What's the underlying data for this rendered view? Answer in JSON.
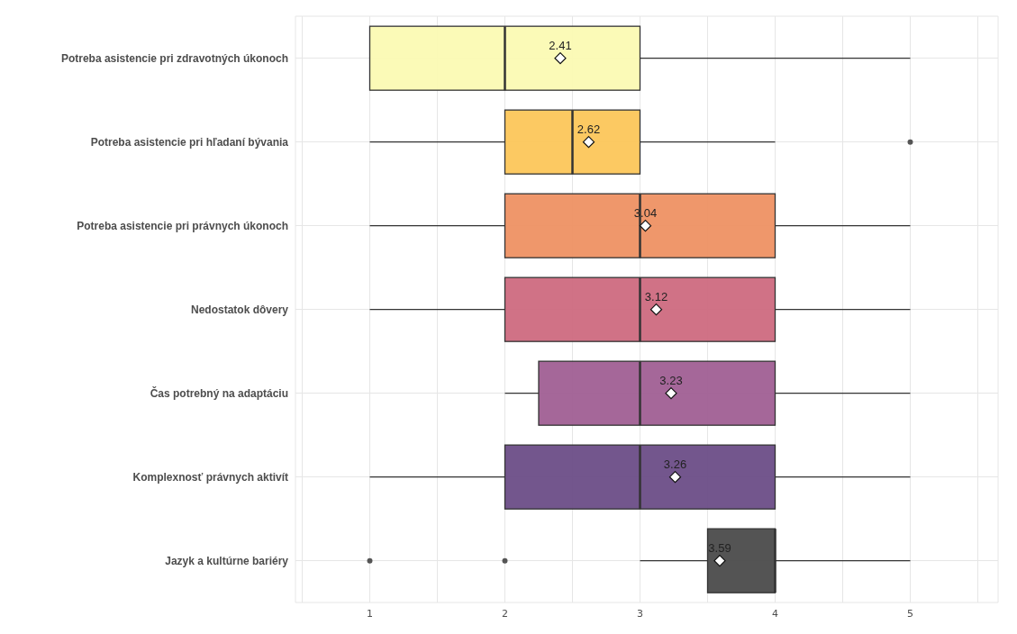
{
  "chart_data": {
    "type": "box",
    "orientation": "horizontal",
    "categories": [
      "Potreba asistencie pri zdravotných úkonoch",
      "Potreba asistencie pri hľadaní bývania",
      "Potreba asistencie pri právnych úkonoch",
      "Nedostatok dôvery",
      "Čas potrebný na adaptáciu",
      "Komplexnosť právnych aktivít",
      "Jazyk a kultúrne bariéry"
    ],
    "boxes": [
      {
        "low": 1,
        "q1": 1,
        "median": 2,
        "q3": 3,
        "high": 5,
        "mean": 2.41
      },
      {
        "low": 1,
        "q1": 2,
        "median": 2.5,
        "q3": 3,
        "high": 4,
        "mean": 2.62,
        "outliers": [
          5
        ]
      },
      {
        "low": 1,
        "q1": 2,
        "median": 3,
        "q3": 4,
        "high": 5,
        "mean": 3.04
      },
      {
        "low": 1,
        "q1": 2,
        "median": 3,
        "q3": 4,
        "high": 5,
        "mean": 3.12
      },
      {
        "low": 2,
        "q1": 2.25,
        "median": 3,
        "q3": 4,
        "high": 5,
        "mean": 3.23
      },
      {
        "low": 1,
        "q1": 2,
        "median": 3,
        "q3": 4,
        "high": 5,
        "mean": 3.26
      },
      {
        "low": 3,
        "q1": 3.5,
        "median": 4,
        "q3": 4,
        "high": 5,
        "mean": 3.59,
        "outliers": [
          1,
          2
        ]
      }
    ],
    "colors": [
      "#fbfab3",
      "#fcc65a",
      "#ee9163",
      "#cd6a80",
      "#a05f93",
      "#6c4d87",
      "#4b4b4b"
    ],
    "xlim": [
      0.45,
      5.65
    ],
    "xticks": [
      {
        "value": 0.5,
        "label": null
      },
      1,
      {
        "value": 1.5,
        "label": null
      },
      2,
      {
        "value": 2.5,
        "label": null
      },
      3,
      {
        "value": 3.5,
        "label": null
      },
      4,
      {
        "value": 4.5,
        "label": null
      },
      5,
      {
        "value": 5.5,
        "label": null
      }
    ],
    "value_labels": [
      "2.41",
      "2.62",
      "3.04",
      "3.12",
      "3.23",
      "3.26",
      "3.59"
    ],
    "grid": true,
    "marker": "diamond"
  }
}
